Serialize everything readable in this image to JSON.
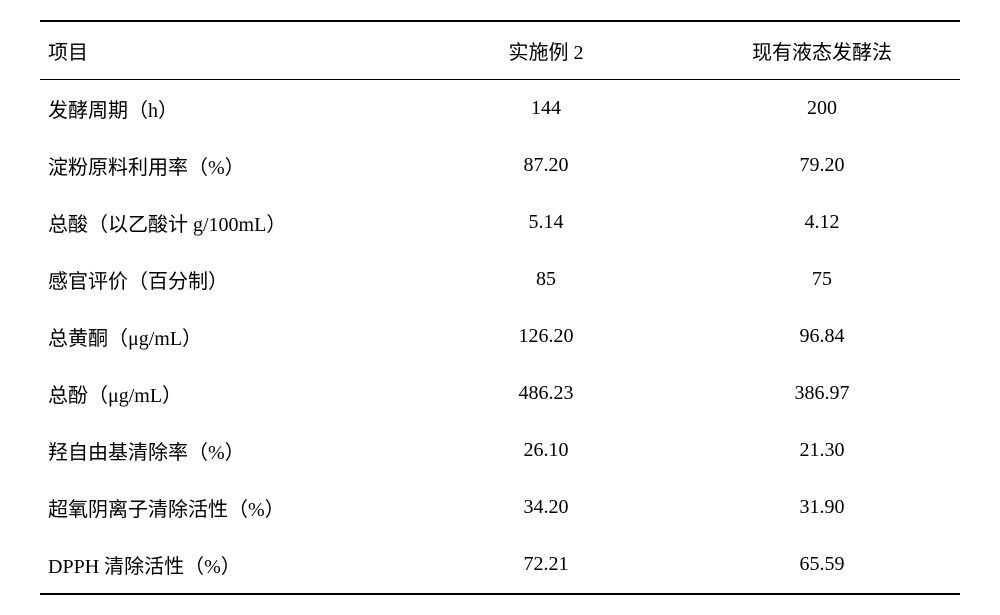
{
  "table": {
    "type": "table",
    "background_color": "#ffffff",
    "text_color": "#000000",
    "border_color": "#000000",
    "font_family": "SimSun",
    "header_fontsize": 20,
    "cell_fontsize": 20,
    "border_top_width": 2,
    "header_border_bottom_width": 1.5,
    "border_bottom_width": 2,
    "row_padding_v": 14,
    "columns": [
      {
        "key": "label",
        "header": "项目",
        "align": "left",
        "width_pct": 40
      },
      {
        "key": "val1",
        "header": "实施例 2",
        "align": "center",
        "width_pct": 30
      },
      {
        "key": "val2",
        "header": "现有液态发酵法",
        "align": "center",
        "width_pct": 30
      }
    ],
    "rows": [
      {
        "label": "发酵周期（h）",
        "val1": "144",
        "val2": "200"
      },
      {
        "label": "淀粉原料利用率（%）",
        "val1": "87.20",
        "val2": "79.20"
      },
      {
        "label": "总酸（以乙酸计 g/100mL）",
        "val1": "5.14",
        "val2": "4.12"
      },
      {
        "label": "感官评价（百分制）",
        "val1": "85",
        "val2": "75"
      },
      {
        "label": "总黄酮（μg/mL）",
        "val1": "126.20",
        "val2": "96.84"
      },
      {
        "label": "总酚（μg/mL）",
        "val1": "486.23",
        "val2": "386.97"
      },
      {
        "label": "羟自由基清除率（%）",
        "val1": "26.10",
        "val2": "21.30"
      },
      {
        "label": "超氧阴离子清除活性（%）",
        "val1": "34.20",
        "val2": "31.90"
      },
      {
        "label": "DPPH 清除活性（%）",
        "val1": "72.21",
        "val2": "65.59"
      }
    ]
  }
}
